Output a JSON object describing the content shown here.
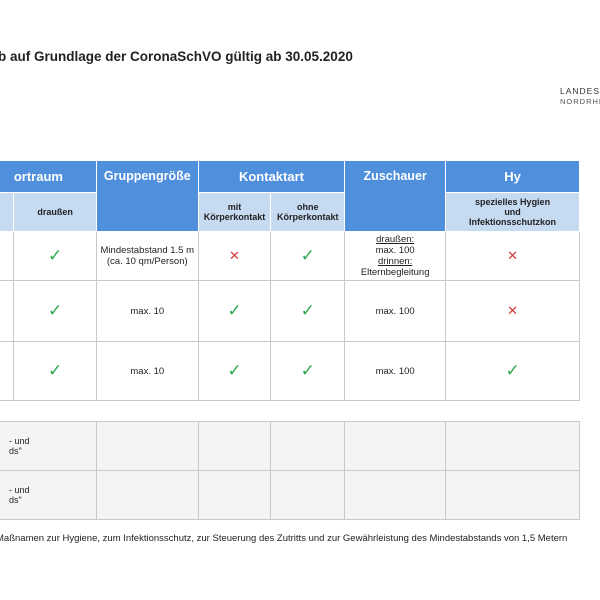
{
  "title": "b auf Grundlage der CoronaSchVO gültig ab 30.05.2020",
  "logo": {
    "line1": "LANDESS",
    "line2": "NORDRHEI"
  },
  "header": {
    "sportraum": "ortraum",
    "gruppen": "Gruppengröße",
    "kontaktart": "Kontaktart",
    "zuschauer": "Zuschauer",
    "hygiene": "Hy",
    "draussen": "draußen",
    "mit": "mit",
    "mit2": "Körperkontakt",
    "ohne": "ohne",
    "ohne2": "Körperkontakt",
    "spez1": "spezielles Hygien",
    "spez2": "und",
    "spez3": "Infektionsschutzkon"
  },
  "rows": [
    {
      "gruppen1": "Mindestabstand 1.5 m",
      "gruppen2": "(ca. 10 qm/Person)",
      "zusch1": "draußen:",
      "zusch2": "max. 100",
      "zusch3": "drinnen:",
      "zusch4": "Elternbegleitung"
    },
    {
      "gruppen": "max. 10",
      "zusch": "max. 100"
    },
    {
      "gruppen": "max. 10",
      "zusch": "max. 100"
    }
  ],
  "extra_rows": [
    {
      "line1": "- und",
      "line2": "ds\""
    },
    {
      "line1": "- und",
      "line2": "ds\""
    }
  ],
  "symbols": {
    "check": "✓",
    "cross": "✕"
  },
  "colors": {
    "header_blue": "#4f8fdc",
    "subheader_blue": "#c6daf2",
    "check_green": "#2fa84f",
    "cross_red": "#d63a3a"
  },
  "footer": "Maßnamen zur Hygiene, zum Infektionsschutz, zur Steuerung des Zutritts und zur Gewährleistung des Mindestabstands von 1,5 Metern"
}
